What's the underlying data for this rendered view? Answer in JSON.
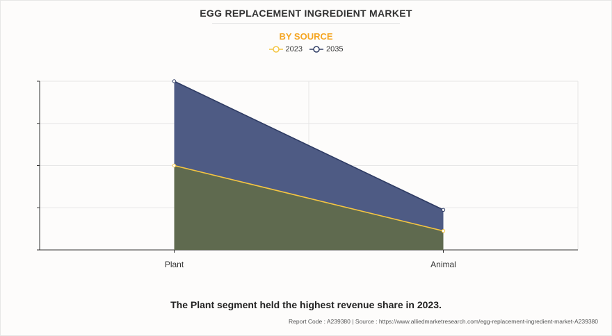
{
  "header": {
    "title": "EGG REPLACEMENT INGREDIENT MARKET",
    "subtitle": "BY SOURCE"
  },
  "chart_data": {
    "type": "area",
    "categories": [
      "Plant",
      "Animal"
    ],
    "series": [
      {
        "name": "2023",
        "values": [
          2.0,
          0.45
        ],
        "line_color": "#f4c542",
        "fill_color": "#5f6a4f"
      },
      {
        "name": "2035",
        "values": [
          4.0,
          0.95
        ],
        "line_color": "#2e3b63",
        "fill_color": "#4e5b84"
      }
    ],
    "ylim": [
      0,
      4
    ],
    "y_tick_labels_shown": false,
    "grid": true,
    "legend_position": "top-center"
  },
  "caption": "The Plant segment held the highest revenue share in 2023.",
  "footer": {
    "report_code": "Report Code : A239380",
    "separator": "|",
    "source": "Source : https://www.alliedmarketresearch.com/egg-replacement-ingredient-market-A239380"
  }
}
